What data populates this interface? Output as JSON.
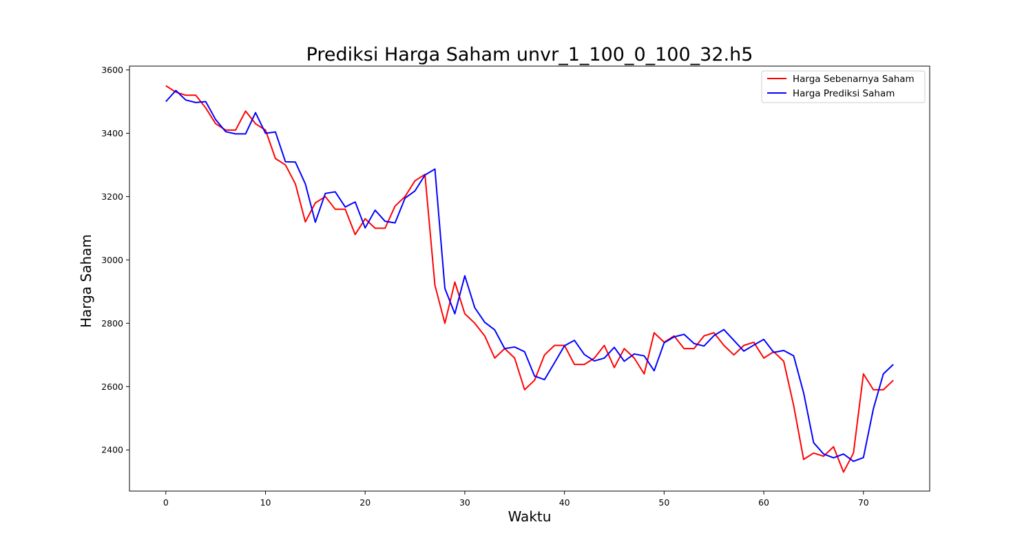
{
  "chart_data": {
    "type": "line",
    "title": "Prediksi Harga Saham unvr_1_100_0_100_32.h5",
    "xlabel": "Waktu",
    "ylabel": "Harga Saham",
    "xlim": [
      -3.65,
      76.65
    ],
    "ylim": [
      2270,
      3612
    ],
    "xticks": [
      0,
      10,
      20,
      30,
      40,
      50,
      60,
      70
    ],
    "yticks": [
      2400,
      2600,
      2800,
      3000,
      3200,
      3400,
      3600
    ],
    "grid": false,
    "legend_position": "top-right",
    "x": [
      0,
      1,
      2,
      3,
      4,
      5,
      6,
      7,
      8,
      9,
      10,
      11,
      12,
      13,
      14,
      15,
      16,
      17,
      18,
      19,
      20,
      21,
      22,
      23,
      24,
      25,
      26,
      27,
      28,
      29,
      30,
      31,
      32,
      33,
      34,
      35,
      36,
      37,
      38,
      39,
      40,
      41,
      42,
      43,
      44,
      45,
      46,
      47,
      48,
      49,
      50,
      51,
      52,
      53,
      54,
      55,
      56,
      57,
      58,
      59,
      60,
      61,
      62,
      63,
      64,
      65,
      66,
      67,
      68,
      69,
      70,
      71,
      72,
      73
    ],
    "series": [
      {
        "name": "Harga Sebenarnya Saham",
        "color": "#ff0000",
        "values": [
          3550,
          3530,
          3520,
          3520,
          3480,
          3430,
          3410,
          3410,
          3470,
          3430,
          3410,
          3320,
          3300,
          3240,
          3120,
          3180,
          3200,
          3160,
          3160,
          3080,
          3130,
          3100,
          3100,
          3170,
          3200,
          3250,
          3270,
          2920,
          2800,
          2930,
          2830,
          2800,
          2760,
          2690,
          2720,
          2690,
          2590,
          2620,
          2700,
          2730,
          2730,
          2670,
          2670,
          2690,
          2730,
          2660,
          2720,
          2690,
          2640,
          2770,
          2740,
          2760,
          2720,
          2720,
          2760,
          2770,
          2730,
          2700,
          2730,
          2740,
          2690,
          2710,
          2680,
          2540,
          2370,
          2390,
          2380,
          2410,
          2330,
          2390,
          2640,
          2590,
          2590,
          2620
        ]
      },
      {
        "name": "Harga Prediksi Saham",
        "color": "#0000ff",
        "values": [
          3500,
          3535,
          3505,
          3497,
          3500,
          3443,
          3405,
          3398,
          3398,
          3465,
          3400,
          3404,
          3310,
          3309,
          3240,
          3119,
          3210,
          3215,
          3167,
          3183,
          3101,
          3157,
          3122,
          3117,
          3195,
          3218,
          3268,
          3287,
          2910,
          2830,
          2950,
          2849,
          2803,
          2779,
          2720,
          2725,
          2710,
          2633,
          2622,
          2675,
          2729,
          2746,
          2701,
          2681,
          2690,
          2724,
          2680,
          2703,
          2697,
          2650,
          2738,
          2757,
          2765,
          2736,
          2728,
          2761,
          2780,
          2746,
          2712,
          2731,
          2749,
          2708,
          2714,
          2697,
          2580,
          2423,
          2387,
          2375,
          2387,
          2364,
          2376,
          2530,
          2640,
          2670
        ]
      }
    ]
  }
}
